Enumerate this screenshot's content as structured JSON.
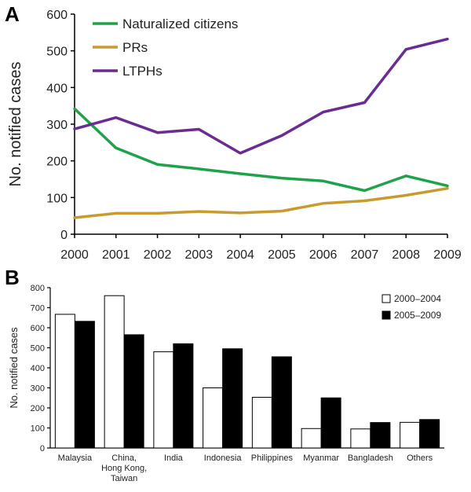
{
  "panels": {
    "a": "A",
    "b": "B"
  },
  "chart_data": [
    {
      "type": "line",
      "ylabel": "No. notified cases",
      "xlabel": "",
      "x": [
        "2000",
        "2001",
        "2002",
        "2003",
        "2004",
        "2005",
        "2006",
        "2007",
        "2008",
        "2009"
      ],
      "ylim": [
        0,
        600
      ],
      "yticks": [
        "0",
        "100",
        "200",
        "300",
        "400",
        "500",
        "600"
      ],
      "legend_position": "top-left",
      "grid": false,
      "series": [
        {
          "name": "Naturalized citizens",
          "color": "#1fa34a",
          "values": [
            342,
            235,
            190,
            178,
            165,
            153,
            145,
            119,
            159,
            132
          ]
        },
        {
          "name": "PRs",
          "color": "#c99a2e",
          "values": [
            45,
            57,
            57,
            62,
            58,
            63,
            84,
            91,
            106,
            125
          ]
        },
        {
          "name": "LTPHs",
          "color": "#6a2c91",
          "values": [
            287,
            318,
            277,
            286,
            221,
            269,
            333,
            359,
            504,
            532
          ]
        }
      ]
    },
    {
      "type": "bar",
      "ylabel": "No. notified cases",
      "xlabel": "",
      "categories": [
        "Malaysia",
        "China,\nHong Kong,\nTaiwan",
        "India",
        "Indonesia",
        "Philippines",
        "Myanmar",
        "Bangladesh",
        "Others"
      ],
      "ylim": [
        0,
        800
      ],
      "yticks": [
        "0",
        "100",
        "200",
        "300",
        "400",
        "500",
        "600",
        "700",
        "800"
      ],
      "legend_position": "top-right",
      "grid": false,
      "series": [
        {
          "name": "2000–2004",
          "color": "#ffffff",
          "values": [
            667,
            760,
            480,
            300,
            253,
            97,
            95,
            128
          ]
        },
        {
          "name": "2005–2009",
          "color": "#000000",
          "values": [
            632,
            565,
            520,
            495,
            455,
            250,
            127,
            142
          ]
        }
      ]
    }
  ]
}
